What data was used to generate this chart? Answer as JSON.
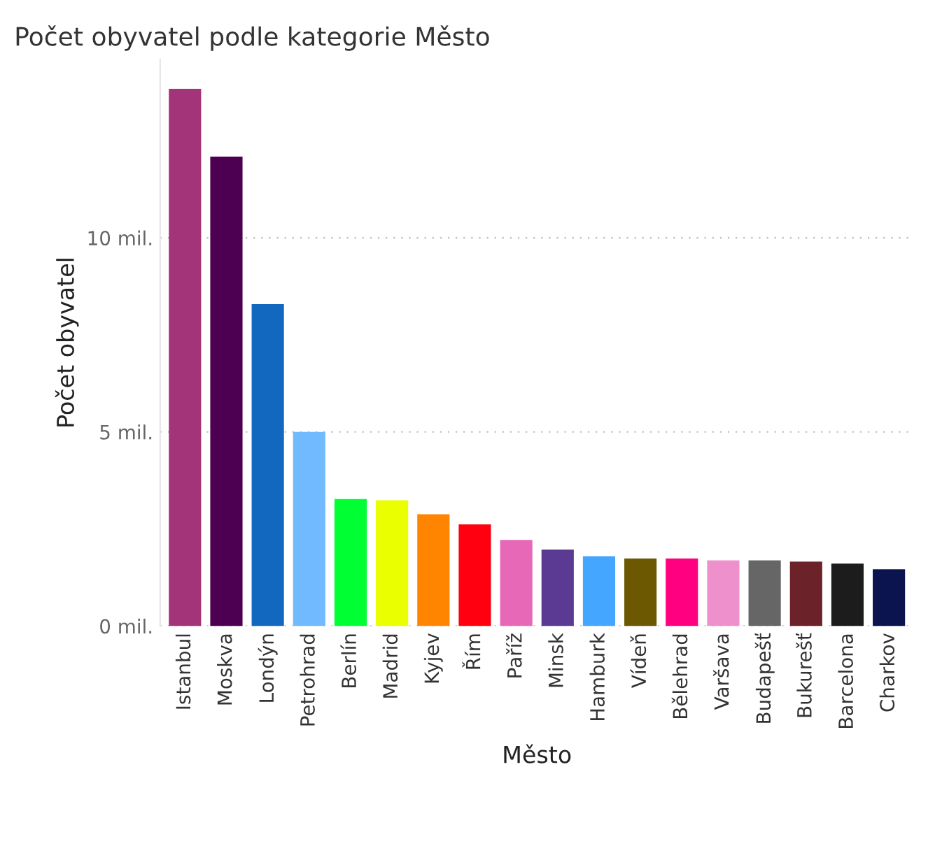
{
  "chart_data": {
    "type": "bar",
    "title": "Počet obyvatel podle kategorie Město",
    "xlabel": "Město",
    "ylabel": "Počet obyvatel",
    "categories": [
      "Istanbul",
      "Moskva",
      "Londýn",
      "Petrohrad",
      "Berlín",
      "Madrid",
      "Kyjev",
      "Řím",
      "Paříž",
      "Minsk",
      "Hamburk",
      "Vídeň",
      "Bělehrad",
      "Varšava",
      "Budapešť",
      "Bukurešť",
      "Barcelona",
      "Charkov"
    ],
    "values": [
      13.84,
      12.09,
      8.29,
      5.0,
      3.27,
      3.24,
      2.88,
      2.62,
      2.22,
      1.97,
      1.8,
      1.74,
      1.74,
      1.69,
      1.69,
      1.66,
      1.61,
      1.46
    ],
    "colors": [
      "#a4347a",
      "#4d0052",
      "#1267bf",
      "#72baff",
      "#00ff33",
      "#eaff00",
      "#ff8500",
      "#ff0011",
      "#e868b8",
      "#5a3a92",
      "#45a6ff",
      "#6b5800",
      "#ff0080",
      "#ee90cc",
      "#666666",
      "#6b2228",
      "#1c1c1c",
      "#0c1450"
    ],
    "ylim": [
      0,
      14.6
    ],
    "yticks": [
      {
        "value": 0,
        "label": "0 mil."
      },
      {
        "value": 5,
        "label": "5 mil."
      },
      {
        "value": 10,
        "label": "10 mil."
      }
    ],
    "grid": "y"
  }
}
